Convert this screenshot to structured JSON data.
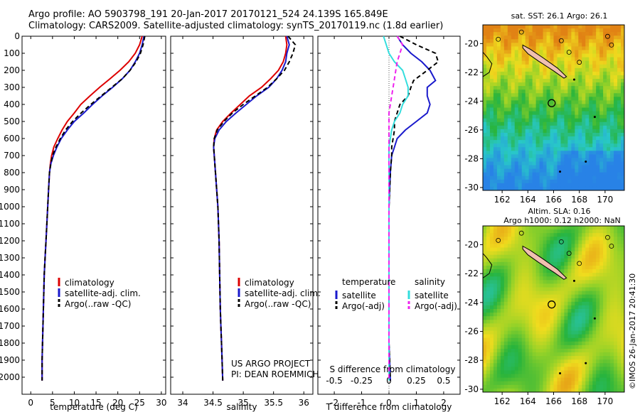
{
  "header": {
    "line1": "Argo profile: AO 5903798_191 20-Jan-2017 20170121_524 24.139S 165.849E",
    "line2": "Climatology: CARS2009. Satellite-adjusted climatology: synTS_20170119.nc (1.8d earlier)"
  },
  "colors": {
    "climatology": "#dd0000",
    "satellite": "#1a1acc",
    "argo": "#000000",
    "salinity_satellite": "#33dddd",
    "salinity_argo": "#ee22ee",
    "pink_land": "#f0c0b0"
  },
  "chart_data": [
    {
      "type": "line",
      "id": "temperature",
      "xlabel": "temperature (deg C)",
      "ylabel": "",
      "xlim": [
        -2,
        31
      ],
      "ylim": [
        2100,
        0
      ],
      "xticks": [
        0,
        5,
        10,
        15,
        20,
        25,
        30
      ],
      "xticklabels": [
        "0",
        "5",
        "10",
        "15",
        "20",
        "25",
        "30"
      ],
      "yticks": [
        0,
        100,
        200,
        300,
        400,
        500,
        600,
        700,
        800,
        900,
        1000,
        1100,
        1200,
        1300,
        1400,
        1500,
        1600,
        1700,
        1800,
        1900,
        2000
      ],
      "yticklabels": [
        "0",
        "100",
        "200",
        "300",
        "400",
        "500",
        "600",
        "700",
        "800",
        "900",
        "1000",
        "1100",
        "1200",
        "1300",
        "1400",
        "1500",
        "1600",
        "1700",
        "1800",
        "1900",
        "2000"
      ],
      "legend": [
        "climatology",
        "satellite-adj. clim.",
        "Argo(..raw -QC)"
      ],
      "series": [
        {
          "name": "climatology",
          "style": "solid",
          "color": "#dd0000",
          "x": [
            25.6,
            25.0,
            24.0,
            22.5,
            20.5,
            18.2,
            15.8,
            13.6,
            11.5,
            10.0,
            8.4,
            7.2,
            6.2,
            5.3,
            4.8,
            4.5,
            4.3,
            4.1,
            3.9,
            3.7,
            3.5,
            3.3,
            3.1,
            3.0,
            2.9,
            2.8,
            2.7,
            2.6,
            2.6
          ],
          "y": [
            0,
            50,
            100,
            150,
            200,
            250,
            300,
            350,
            400,
            450,
            500,
            550,
            600,
            650,
            700,
            750,
            800,
            900,
            1000,
            1100,
            1200,
            1300,
            1400,
            1500,
            1600,
            1700,
            1800,
            1900,
            2020
          ]
        },
        {
          "name": "satellite-adj. clim.",
          "style": "solid",
          "color": "#1a1acc",
          "x": [
            26.0,
            25.6,
            25.0,
            24.0,
            22.8,
            21.0,
            18.8,
            16.4,
            14.2,
            12.2,
            10.0,
            8.4,
            7.0,
            6.0,
            5.2,
            4.6,
            4.3,
            4.1,
            3.9,
            3.7,
            3.5,
            3.3,
            3.1,
            3.0,
            2.9,
            2.8,
            2.7,
            2.6,
            2.6
          ],
          "y": [
            0,
            50,
            100,
            150,
            200,
            250,
            300,
            350,
            400,
            450,
            500,
            550,
            600,
            650,
            700,
            750,
            800,
            900,
            1000,
            1100,
            1200,
            1300,
            1400,
            1500,
            1600,
            1700,
            1800,
            1900,
            2020
          ]
        },
        {
          "name": "Argo(..raw -QC)",
          "style": "dashed",
          "color": "#000000",
          "x": [
            26.2,
            25.8,
            25.2,
            24.2,
            22.8,
            21.0,
            18.6,
            16.2,
            13.8,
            11.6,
            9.6,
            8.0,
            6.8,
            5.8,
            5.0,
            4.6,
            4.3,
            4.1,
            3.9,
            3.7,
            3.5,
            3.3,
            3.1,
            3.0,
            2.9,
            2.8,
            2.7,
            2.6,
            2.6
          ],
          "y": [
            0,
            50,
            100,
            150,
            200,
            250,
            300,
            350,
            400,
            450,
            500,
            550,
            600,
            650,
            700,
            750,
            800,
            900,
            1000,
            1100,
            1200,
            1300,
            1400,
            1500,
            1600,
            1700,
            1800,
            1900,
            2020
          ]
        }
      ]
    },
    {
      "type": "line",
      "id": "salinity",
      "xlabel": "salinity",
      "ylabel": "",
      "xlim": [
        33.8,
        36.15
      ],
      "ylim": [
        2100,
        0
      ],
      "xticks": [
        34,
        34.5,
        35,
        35.5,
        36
      ],
      "xticklabels": [
        "34",
        "34.5",
        "35",
        "35.5",
        "36"
      ],
      "legend": [
        "climatology",
        "satellite-adj. clim.",
        "Argo(..raw -QC)"
      ],
      "annotations": [
        "US ARGO PROJECT",
        "PI: DEAN ROEMMICH"
      ],
      "series": [
        {
          "name": "climatology",
          "style": "solid",
          "color": "#dd0000",
          "x": [
            35.7,
            35.72,
            35.7,
            35.66,
            35.58,
            35.45,
            35.3,
            35.1,
            34.95,
            34.8,
            34.66,
            34.56,
            34.52,
            34.51,
            34.52,
            34.54,
            34.56,
            34.58,
            34.6,
            34.61,
            34.62,
            34.63,
            34.64,
            34.65,
            34.66
          ],
          "y": [
            0,
            50,
            100,
            150,
            200,
            250,
            300,
            350,
            400,
            450,
            500,
            550,
            600,
            650,
            700,
            800,
            900,
            1000,
            1200,
            1400,
            1600,
            1700,
            1800,
            1900,
            2020
          ]
        },
        {
          "name": "satellite-adj. clim.",
          "style": "solid",
          "color": "#1a1acc",
          "x": [
            35.72,
            35.76,
            35.72,
            35.7,
            35.64,
            35.55,
            35.42,
            35.22,
            35.05,
            34.88,
            34.72,
            34.6,
            34.53,
            34.51,
            34.52,
            34.54,
            34.56,
            34.58,
            34.6,
            34.61,
            34.62,
            34.63,
            34.64,
            34.65,
            34.66
          ],
          "y": [
            0,
            50,
            100,
            150,
            200,
            250,
            300,
            350,
            400,
            450,
            500,
            550,
            600,
            650,
            700,
            800,
            900,
            1000,
            1200,
            1400,
            1600,
            1700,
            1800,
            1900,
            2020
          ]
        },
        {
          "name": "Argo(..raw -QC)",
          "style": "dashed",
          "color": "#000000",
          "x": [
            35.74,
            35.86,
            35.82,
            35.76,
            35.68,
            35.55,
            35.4,
            35.2,
            35.0,
            34.82,
            34.68,
            34.57,
            34.52,
            34.51,
            34.52,
            34.54,
            34.56,
            34.58,
            34.6,
            34.61,
            34.62,
            34.63,
            34.64,
            34.65,
            34.66
          ],
          "y": [
            0,
            50,
            100,
            150,
            200,
            250,
            300,
            350,
            400,
            450,
            500,
            550,
            600,
            650,
            700,
            800,
            900,
            1000,
            1200,
            1400,
            1600,
            1700,
            1800,
            1900,
            2020
          ]
        }
      ]
    },
    {
      "type": "line",
      "id": "differences",
      "xlabel": "T difference from climatology",
      "xlabel_top": "S difference from climatology",
      "xlim": [
        -2.6,
        2.6
      ],
      "ylim": [
        2100,
        0
      ],
      "xticks": [
        -2,
        -1,
        0,
        1,
        2
      ],
      "xticklabels": [
        "-2",
        "-1",
        "0",
        "1",
        "2"
      ],
      "xticks_top": [
        -0.5,
        -0.25,
        0,
        0.25,
        0.5
      ],
      "xticklabels_top": [
        "-0.5",
        "-0.25",
        "0",
        "0.25",
        "0.5"
      ],
      "legend_headers": [
        "temperature",
        "salinity"
      ],
      "legend": [
        "satellite",
        "Argo(-adj)",
        "satellite",
        "Argo(-adj)"
      ],
      "series": [
        {
          "name": "satellite",
          "group": "temperature",
          "style": "solid",
          "color": "#1a1acc",
          "x": [
            0.3,
            0.5,
            0.8,
            1.2,
            1.5,
            1.7,
            1.4,
            1.4,
            1.5,
            1.4,
            1.0,
            0.6,
            0.3,
            0.2,
            0.1,
            0.05,
            0.0,
            0.0,
            0.0,
            0.0,
            0.05
          ],
          "y": [
            0,
            50,
            100,
            150,
            200,
            260,
            300,
            350,
            400,
            450,
            500,
            550,
            600,
            650,
            700,
            800,
            1000,
            1200,
            1500,
            1800,
            2020
          ]
        },
        {
          "name": "Argo(-adj)",
          "group": "temperature",
          "style": "dashed",
          "color": "#000000",
          "x": [
            0.4,
            1.0,
            1.7,
            1.8,
            1.4,
            0.9,
            0.8,
            0.7,
            0.4,
            0.3,
            0.2,
            0.2,
            0.15,
            0.1,
            0.1,
            0.05,
            0.0,
            0.0,
            0.0,
            0.0,
            0.05
          ],
          "y": [
            0,
            50,
            100,
            150,
            200,
            260,
            300,
            350,
            400,
            450,
            500,
            550,
            600,
            650,
            700,
            800,
            1000,
            1200,
            1500,
            1800,
            2020
          ]
        },
        {
          "name": "satellite",
          "group": "salinity",
          "style": "solid",
          "color": "#33dddd",
          "x": [
            -0.2,
            -0.1,
            0.0,
            0.2,
            0.5,
            0.6,
            0.7,
            0.7,
            0.5,
            0.4,
            0.2,
            0.1,
            0.05,
            0.0,
            0.0,
            0.0,
            0.0,
            0.0,
            0.0,
            0.0,
            0.0
          ],
          "y": [
            0,
            50,
            100,
            150,
            200,
            250,
            300,
            350,
            400,
            450,
            500,
            550,
            600,
            650,
            700,
            800,
            1000,
            1200,
            1500,
            1800,
            2020
          ]
        },
        {
          "name": "Argo(-adj)",
          "group": "salinity",
          "style": "dashed",
          "color": "#ee22ee",
          "x": [
            0.3,
            0.5,
            0.4,
            0.3,
            0.25,
            0.2,
            0.15,
            0.1,
            0.05,
            0.0,
            0.0,
            0.0,
            0.0,
            0.0,
            0.0,
            0.0,
            0.0,
            0.0,
            0.0,
            0.0,
            0.0
          ],
          "y": [
            0,
            50,
            100,
            150,
            200,
            250,
            300,
            350,
            400,
            450,
            500,
            550,
            600,
            650,
            700,
            800,
            1000,
            1200,
            1500,
            1800,
            2020
          ]
        }
      ]
    },
    {
      "type": "heatmap",
      "id": "sst-map",
      "title": "sat. SST: 26.1  Argo: 26.1",
      "xlim": [
        160.5,
        171.5
      ],
      "ylim": [
        -30.2,
        -18.7
      ],
      "xticks": [
        162,
        164,
        166,
        168,
        170
      ],
      "xticklabels": [
        "162",
        "164",
        "166",
        "168",
        "170"
      ],
      "yticks": [
        -20,
        -22,
        -24,
        -26,
        -28,
        -30
      ],
      "yticklabels": [
        "-20",
        "-22",
        "-24",
        "-26",
        "-28",
        "-30"
      ],
      "marker": {
        "lon": 165.849,
        "lat": -24.139
      }
    },
    {
      "type": "heatmap",
      "id": "sla-map",
      "title": "Altim. SLA: 0.16",
      "subtitle": "Argo h1000: 0.12 h2000: NaN",
      "xlim": [
        160.5,
        171.5
      ],
      "ylim": [
        -30.2,
        -18.7
      ],
      "xticks": [
        162,
        164,
        166,
        168,
        170
      ],
      "xticklabels": [
        "162",
        "164",
        "166",
        "168",
        "170"
      ],
      "yticks": [
        -20,
        -22,
        -24,
        -26,
        -28,
        -30
      ],
      "yticklabels": [
        "-20",
        "-22",
        "-24",
        "-26",
        "-28",
        "-30"
      ],
      "marker": {
        "lon": 165.849,
        "lat": -24.139
      }
    }
  ],
  "credit": "©IMOS 26-Jan-2017 20:41:30"
}
